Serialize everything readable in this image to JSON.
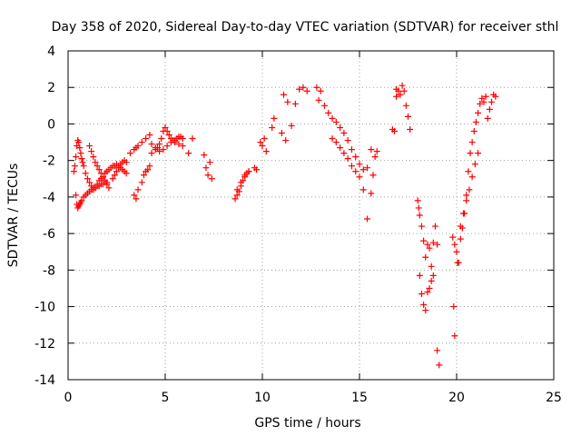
{
  "chart_data": {
    "type": "scatter",
    "title": "Day 358 of 2020, Sidereal Day-to-day VTEC variation (SDTVAR) for receiver sthl",
    "xlabel": "GPS time / hours",
    "ylabel": "SDTVAR / TECUs",
    "xlim": [
      0,
      25
    ],
    "ylim": [
      -14,
      4
    ],
    "xticks": [
      0,
      5,
      10,
      15,
      20,
      25
    ],
    "yticks": [
      -14,
      -12,
      -10,
      -8,
      -6,
      -4,
      -2,
      0,
      2,
      4
    ],
    "xtick_labels": [
      "0",
      "5",
      "10",
      "15",
      "20",
      "25"
    ],
    "ytick_labels": [
      "-14",
      "-12",
      "-10",
      "-8",
      "-6",
      "-4",
      "-2",
      "0",
      "2",
      "4"
    ],
    "grid": true,
    "marker": "+",
    "color": "#ff0000",
    "series": [
      {
        "name": "SDTVAR",
        "x": [
          0.3,
          0.35,
          0.4,
          0.45,
          0.5,
          0.55,
          0.6,
          0.65,
          0.7,
          0.75,
          0.8,
          0.9,
          1.0,
          1.1,
          1.2,
          1.3,
          1.4,
          1.5,
          1.6,
          1.7,
          1.8,
          1.9,
          2.0,
          2.1,
          2.2,
          2.3,
          2.4,
          2.5,
          2.6,
          2.7,
          2.8,
          2.9,
          3.0,
          0.4,
          0.45,
          0.5,
          0.55,
          0.6,
          0.65,
          0.7,
          0.8,
          0.9,
          1.0,
          1.1,
          1.2,
          1.3,
          1.4,
          1.5,
          1.6,
          1.7,
          1.8,
          1.9,
          2.0,
          1.1,
          1.2,
          1.3,
          1.4,
          1.5,
          1.6,
          1.7,
          1.8,
          1.9,
          2.0,
          2.1,
          2.3,
          2.4,
          2.5,
          2.6,
          2.7,
          2.8,
          2.9,
          3.0,
          3.2,
          3.4,
          3.5,
          3.6,
          3.8,
          4.0,
          4.2,
          3.4,
          3.5,
          3.6,
          3.8,
          3.9,
          4.0,
          4.1,
          4.2,
          4.3,
          4.5,
          4.6,
          4.7,
          4.8,
          4.9,
          5.0,
          5.1,
          5.2,
          5.3,
          5.4,
          5.5,
          5.6,
          5.7,
          5.8,
          5.9,
          4.3,
          4.5,
          4.7,
          4.9,
          5.1,
          5.3,
          5.5,
          5.7,
          5.9,
          6.2,
          6.4,
          7.0,
          7.1,
          7.2,
          7.3,
          7.4,
          8.6,
          8.7,
          8.8,
          8.9,
          9.0,
          9.1,
          9.2,
          9.3,
          8.7,
          8.9,
          9.1,
          9.3,
          9.6,
          9.7,
          9.9,
          10.0,
          10.1,
          10.2,
          10.5,
          10.6,
          11.0,
          11.1,
          11.2,
          11.3,
          11.5,
          11.7,
          11.9,
          12.1,
          12.3,
          12.8,
          12.9,
          13.0,
          13.2,
          13.4,
          13.6,
          13.8,
          14.0,
          14.2,
          14.4,
          14.6,
          14.8,
          15.0,
          15.2,
          15.4,
          15.6,
          13.6,
          13.8,
          14.0,
          14.2,
          14.4,
          14.6,
          14.8,
          15.0,
          15.2,
          15.4,
          15.6,
          15.7,
          15.8,
          15.9,
          16.7,
          16.8,
          16.9,
          17.0,
          17.1,
          17.2,
          17.3,
          17.4,
          17.5,
          17.6,
          16.9,
          18.0,
          18.05,
          18.1,
          18.2,
          18.3,
          18.4,
          18.5,
          18.6,
          18.7,
          18.8,
          19.0,
          18.1,
          18.2,
          18.3,
          18.4,
          18.5,
          18.6,
          18.7,
          18.8,
          18.9,
          19.0,
          19.1,
          19.8,
          19.9,
          20.0,
          20.1,
          20.2,
          20.3,
          20.4,
          20.5,
          20.6,
          20.7,
          20.8,
          20.9,
          21.0,
          21.1,
          21.2,
          21.3,
          21.4,
          21.5,
          21.6,
          21.7,
          21.8,
          21.9,
          22.0,
          19.85,
          19.9,
          20.05,
          20.2,
          20.35,
          20.5,
          20.65,
          20.8,
          20.95,
          21.1
        ],
        "y": [
          -2.6,
          -2.3,
          -1.8,
          -1.2,
          -0.9,
          -1.0,
          -1.3,
          -1.6,
          -1.9,
          -2.1,
          -2.3,
          -2.7,
          -3.0,
          -3.2,
          -3.4,
          -3.6,
          -3.5,
          -3.3,
          -3.1,
          -3.0,
          -2.9,
          -2.7,
          -2.6,
          -2.5,
          -2.4,
          -2.3,
          -2.3,
          -2.2,
          -2.3,
          -2.4,
          -2.5,
          -2.6,
          -2.7,
          -3.9,
          -4.4,
          -4.6,
          -4.5,
          -4.4,
          -4.3,
          -4.2,
          -4.0,
          -3.9,
          -3.8,
          -3.7,
          -3.6,
          -3.5,
          -3.5,
          -3.4,
          -3.4,
          -3.3,
          -3.3,
          -3.2,
          -3.2,
          -1.2,
          -1.5,
          -1.8,
          -2.1,
          -2.3,
          -2.5,
          -2.7,
          -2.9,
          -3.1,
          -3.3,
          -3.5,
          -3.0,
          -2.8,
          -2.6,
          -2.4,
          -2.2,
          -2.1,
          -2.0,
          -2.1,
          -1.6,
          -1.4,
          -1.3,
          -1.2,
          -1.0,
          -0.8,
          -0.6,
          -3.9,
          -4.1,
          -3.6,
          -3.2,
          -2.8,
          -2.6,
          -2.5,
          -2.3,
          -1.6,
          -1.4,
          -1.3,
          -1.1,
          -0.8,
          -0.4,
          -0.2,
          -0.4,
          -0.6,
          -0.8,
          -0.9,
          -0.9,
          -0.8,
          -0.7,
          -0.7,
          -0.8,
          -1.1,
          -1.3,
          -1.5,
          -1.4,
          -1.2,
          -1.0,
          -1.0,
          -1.1,
          -1.2,
          -1.6,
          -0.8,
          -1.7,
          -2.4,
          -2.8,
          -2.1,
          -3.0,
          -4.1,
          -3.9,
          -3.7,
          -3.4,
          -3.1,
          -2.9,
          -2.7,
          -2.6,
          -3.6,
          -3.2,
          -2.8,
          -2.6,
          -2.4,
          -2.5,
          -1.0,
          -1.2,
          -0.8,
          -1.5,
          -0.2,
          0.3,
          -0.5,
          1.6,
          -0.9,
          1.2,
          -0.1,
          1.1,
          1.9,
          2.0,
          1.8,
          2.0,
          1.3,
          1.8,
          1.0,
          0.6,
          0.3,
          0.1,
          -0.2,
          -0.5,
          -0.9,
          -1.4,
          -1.8,
          -2.2,
          -2.5,
          -2.4,
          -1.4,
          -0.8,
          -1.0,
          -1.3,
          -1.6,
          -1.9,
          -2.3,
          -2.6,
          -2.9,
          -3.6,
          -5.2,
          -3.8,
          -2.8,
          -1.8,
          -1.5,
          -0.3,
          -0.4,
          1.9,
          1.8,
          1.6,
          2.1,
          1.8,
          1.0,
          0.4,
          -0.3,
          1.5,
          -4.2,
          -4.6,
          -5.0,
          -5.6,
          -6.4,
          -7.3,
          -6.6,
          -6.8,
          -7.8,
          -8.3,
          -6.6,
          -8.3,
          -9.3,
          -9.9,
          -10.2,
          -9.2,
          -9.0,
          -8.6,
          -6.5,
          -5.6,
          -12.4,
          -13.2,
          -6.2,
          -6.6,
          -7.0,
          -7.6,
          -6.3,
          -5.7,
          -4.9,
          -3.9,
          -2.6,
          -1.6,
          -1.0,
          -0.4,
          0.1,
          0.6,
          1.1,
          1.4,
          1.2,
          1.5,
          0.3,
          0.8,
          1.2,
          1.6,
          1.5,
          -10.0,
          -11.6,
          -7.6,
          -5.6,
          -4.9,
          -4.2,
          -3.6,
          -2.9,
          -2.2,
          -1.6
        ]
      }
    ]
  }
}
